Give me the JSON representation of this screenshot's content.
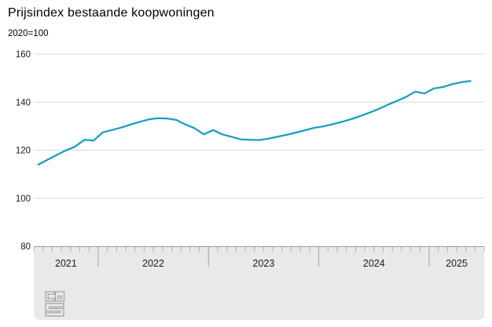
{
  "title": "Prijsindex bestaande koopwoningen",
  "subtitle": "2020=100",
  "logo": {
    "name": "cbs-logo"
  },
  "chart_data": {
    "type": "line",
    "title": "Prijsindex bestaande koopwoningen",
    "subtitle": "2020=100",
    "series_name": "Prijsindex bestaande koopwoningen (2020=100)",
    "x_unit": "month",
    "months": [
      "2021-06",
      "2021-07",
      "2021-08",
      "2021-09",
      "2021-10",
      "2021-11",
      "2021-12",
      "2022-01",
      "2022-02",
      "2022-03",
      "2022-04",
      "2022-05",
      "2022-06",
      "2022-07",
      "2022-08",
      "2022-09",
      "2022-10",
      "2022-11",
      "2022-12",
      "2023-01",
      "2023-02",
      "2023-03",
      "2023-04",
      "2023-05",
      "2023-06",
      "2023-07",
      "2023-08",
      "2023-09",
      "2023-10",
      "2023-11",
      "2023-12",
      "2024-01",
      "2024-02",
      "2024-03",
      "2024-04",
      "2024-05",
      "2024-06",
      "2024-07",
      "2024-08",
      "2024-09",
      "2024-10",
      "2024-11",
      "2024-12",
      "2025-01",
      "2025-02",
      "2025-03",
      "2025-04",
      "2025-05"
    ],
    "values": [
      114.0,
      116.0,
      118.0,
      119.9,
      121.5,
      124.3,
      124.0,
      127.4,
      128.4,
      129.4,
      130.6,
      131.8,
      132.8,
      133.3,
      133.2,
      132.6,
      130.7,
      129.1,
      126.6,
      128.4,
      126.6,
      125.6,
      124.5,
      124.3,
      124.2,
      124.8,
      125.6,
      126.4,
      127.3,
      128.3,
      129.3,
      129.9,
      130.8,
      131.8,
      132.9,
      134.2,
      135.6,
      137.1,
      138.9,
      140.5,
      142.2,
      144.4,
      143.6,
      145.7,
      146.3,
      147.5,
      148.3,
      148.8
    ],
    "year_labels": [
      "2021",
      "2022",
      "2023",
      "2024",
      "2025"
    ],
    "y_ticks": [
      80,
      100,
      120,
      140,
      160
    ],
    "ylim": [
      80,
      160
    ],
    "grid": "horizontal",
    "legend": "none",
    "line_color": "#189ebc",
    "gridline_color": "#d9d9d9",
    "axis_band_color": "#e9e9e9",
    "axis_line_color": "#999999",
    "tick_color": "#b0b0b0",
    "divider_color": "#a3a3a3",
    "label_color": "#1a1a1a"
  }
}
